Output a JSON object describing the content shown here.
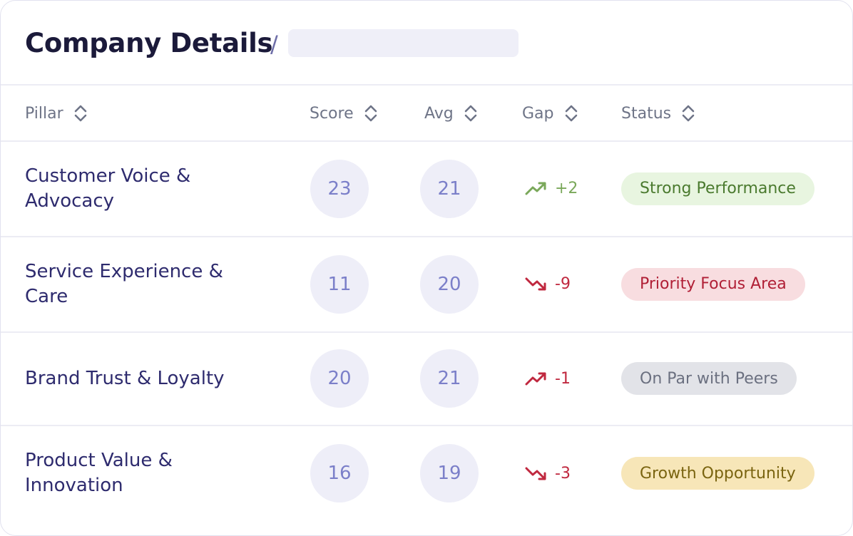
{
  "header": {
    "title": "Company Details",
    "separator": "/"
  },
  "table": {
    "columns": [
      "Pillar",
      "Score",
      "Avg",
      "Gap",
      "Status"
    ],
    "rows": [
      [
        "Customer Voice & Advocacy",
        23,
        21,
        "+2",
        "Strong Performance"
      ],
      [
        "Service Experience & Care",
        11,
        20,
        "-9",
        "Priority Focus Area"
      ],
      [
        "Brand Trust & Loyalty",
        20,
        21,
        "-1",
        "On Par with Peers"
      ],
      [
        "Product Value & Innovation",
        16,
        19,
        "-3",
        "Growth Opportunity"
      ]
    ]
  }
}
